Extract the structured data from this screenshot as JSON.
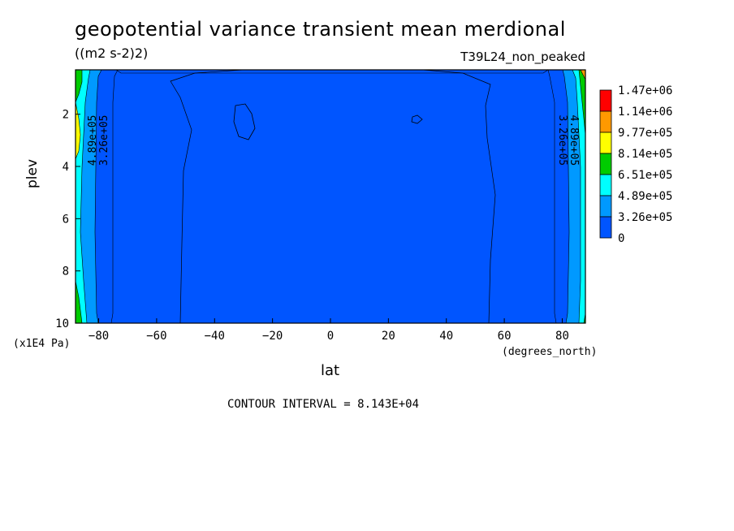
{
  "chart_data": {
    "type": "heatmap",
    "title": "geopotential variance transient mean merdional",
    "units": "((m2 s-2)2)",
    "run_name": "T39L24_non_peaked",
    "xlabel": "lat",
    "x_units": "(degrees_north)",
    "ylabel": "plev",
    "y_units": "(x1E4 Pa)",
    "xlim": [
      -88,
      88
    ],
    "ylim": [
      10,
      0.3
    ],
    "y_inverted": true,
    "x_ticks": [
      -80,
      -60,
      -40,
      -20,
      0,
      20,
      40,
      60,
      80
    ],
    "x_tick_labels": [
      "−80",
      "−60",
      "−40",
      "−20",
      "0",
      "20",
      "40",
      "60",
      "80"
    ],
    "y_ticks": [
      2,
      4,
      6,
      8,
      10
    ],
    "y_tick_labels": [
      "2",
      "4",
      "6",
      "8",
      "10"
    ],
    "contour_interval_text": "CONTOUR INTERVAL = 8.143E+04",
    "contour_interval": 81430,
    "legend": {
      "placement": "right",
      "labels": [
        "1.47e+06",
        "1.14e+06",
        "9.77e+05",
        "8.14e+05",
        "6.51e+05",
        "4.89e+05",
        "3.26e+05",
        "0"
      ],
      "colors": [
        "#ff0000",
        "#ff9900",
        "#ffff00",
        "#00cc00",
        "#00ffff",
        "#0099ff",
        "#0055ff",
        "#0055ff"
      ]
    },
    "contour_labels": [
      {
        "text": "4.89e+05",
        "lat": -81,
        "plev": 3
      },
      {
        "text": "3.26e+05",
        "lat": -77,
        "plev": 3
      },
      {
        "text": "4.89e+05",
        "lat": 83,
        "plev": 3
      },
      {
        "text": "3.26e+05",
        "lat": 79,
        "plev": 3
      }
    ],
    "field_description_levels": [
      0,
      326000,
      489000,
      651000,
      814000,
      977000
    ]
  }
}
